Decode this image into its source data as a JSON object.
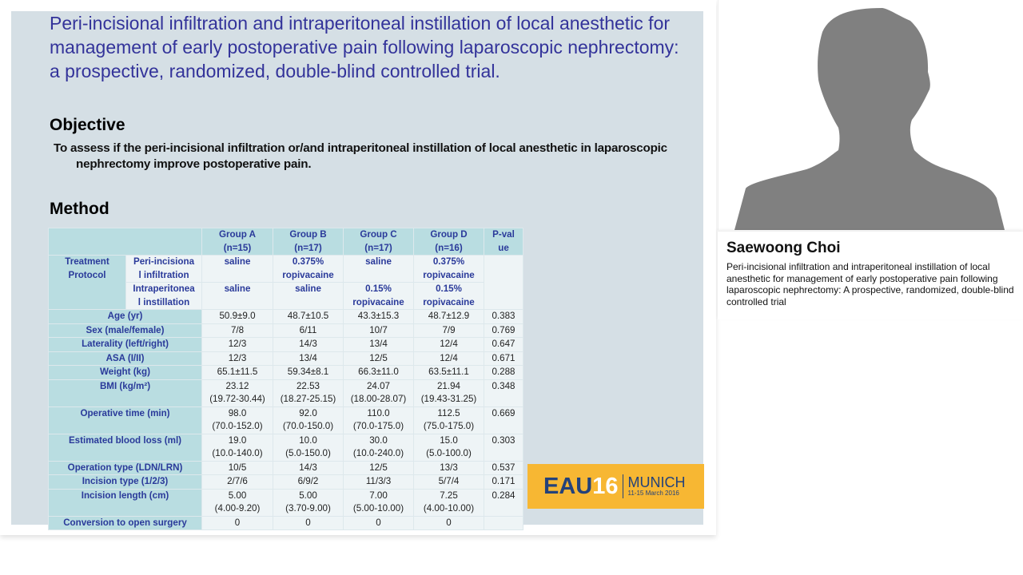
{
  "slide": {
    "title": "Peri-incisional infiltration and intraperitoneal instillation of local anesthetic for management of early postoperative pain following laparoscopic nephrectomy: a prospective, randomized, double-blind controlled trial.",
    "objective_heading": "Objective",
    "objective_text": "To assess if the peri-incisional infiltration or/and intraperitoneal instillation of local anesthetic in laparoscopic nephrectomy improve postoperative pain.",
    "method_heading": "Method",
    "table": {
      "headers": [
        {
          "line1": "Group A",
          "line2": "(n=15)"
        },
        {
          "line1": "Group B",
          "line2": "(n=17)"
        },
        {
          "line1": "Group C",
          "line2": "(n=17)"
        },
        {
          "line1": "Group D",
          "line2": "(n=16)"
        },
        {
          "line1": "P-val",
          "line2": "ue"
        }
      ],
      "treatment_protocol": {
        "label_line1": "Treatment",
        "label_line2": "Protocol",
        "rows": [
          {
            "sublabel_line1": "Peri-incisiona",
            "sublabel_line2": "l infiltration",
            "values": [
              {
                "line1": "saline",
                "line2": ""
              },
              {
                "line1": "0.375%",
                "line2": "ropivacaine"
              },
              {
                "line1": "saline",
                "line2": ""
              },
              {
                "line1": "0.375%",
                "line2": "ropivacaine"
              }
            ]
          },
          {
            "sublabel_line1": "Intraperitonea",
            "sublabel_line2": "l instillation",
            "values": [
              {
                "line1": "saline",
                "line2": ""
              },
              {
                "line1": "saline",
                "line2": ""
              },
              {
                "line1": "0.15%",
                "line2": "ropivacaine"
              },
              {
                "line1": "0.15%",
                "line2": "ropivacaine"
              }
            ]
          }
        ]
      },
      "rows": [
        {
          "label": "Age (yr)",
          "values": [
            "50.9±9.0",
            "48.7±10.5",
            "43.3±15.3",
            "48.7±12.9"
          ],
          "p": "0.383"
        },
        {
          "label": "Sex (male/female)",
          "values": [
            "7/8",
            "6/11",
            "10/7",
            "7/9"
          ],
          "p": "0.769"
        },
        {
          "label": "Laterality (left/right)",
          "values": [
            "12/3",
            "14/3",
            "13/4",
            "12/4"
          ],
          "p": "0.647"
        },
        {
          "label": "ASA (I/II)",
          "values": [
            "12/3",
            "13/4",
            "12/5",
            "12/4"
          ],
          "p": "0.671"
        },
        {
          "label": "Weight (kg)",
          "values": [
            "65.1±11.5",
            "59.34±8.1",
            "66.3±11.0",
            "63.5±11.1"
          ],
          "p": "0.288"
        },
        {
          "label": "BMI (kg/m²)",
          "values": [
            "23.12",
            "22.53",
            "24.07",
            "21.94"
          ],
          "ranges": [
            "(19.72-30.44)",
            "(18.27-25.15)",
            "(18.00-28.07)",
            "(19.43-31.25)"
          ],
          "p": "0.348"
        },
        {
          "label": "Operative time (min)",
          "values": [
            "98.0",
            "92.0",
            "110.0",
            "112.5"
          ],
          "ranges": [
            "(70.0-152.0)",
            "(70.0-150.0)",
            "(70.0-175.0)",
            "(75.0-175.0)"
          ],
          "p": "0.669"
        },
        {
          "label": "Estimated blood loss (ml)",
          "values": [
            "19.0",
            "10.0",
            "30.0",
            "15.0"
          ],
          "ranges": [
            "(10.0-140.0)",
            "(5.0-150.0)",
            "(10.0-240.0)",
            "(5.0-100.0)"
          ],
          "p": "0.303"
        },
        {
          "label": "Operation type (LDN/LRN)",
          "values": [
            "10/5",
            "14/3",
            "12/5",
            "13/3"
          ],
          "p": "0.537"
        },
        {
          "label": "Incision type (1/2/3)",
          "values": [
            "2/7/6",
            "6/9/2",
            "11/3/3",
            "5/7/4"
          ],
          "p": "0.171"
        },
        {
          "label": "Incision length (cm)",
          "values": [
            "5.00",
            "5.00",
            "7.00",
            "7.25"
          ],
          "ranges": [
            "(4.00-9.20)",
            "(3.70-9.00)",
            "(5.00-10.00)",
            "(4.00-10.00)"
          ],
          "p": "0.284"
        },
        {
          "label": "Conversion to open surgery",
          "values": [
            "0",
            "0",
            "0",
            "0"
          ],
          "p": ""
        }
      ]
    },
    "logo": {
      "eau": "EAU",
      "number": "16",
      "city": "MUNICH",
      "dates": "11-15 March 2016",
      "bg_color": "#f7b733",
      "text_color": "#24427a"
    }
  },
  "speaker": {
    "name": "Saewoong Choi",
    "talk_title": "Peri-incisional infiltration and intraperitoneal instillation of local anesthetic for management of early postoperative pain following laparoscopic nephrectomy: A prospective, randomized, double-blind controlled trial",
    "avatar_icon": "person-silhouette-icon"
  },
  "colors": {
    "slide_bg": "#d5dfe5",
    "title_color": "#33339a",
    "table_header": "#b9dde1",
    "table_label_text": "#2a3a9a",
    "table_cell": "#eef4f6"
  }
}
